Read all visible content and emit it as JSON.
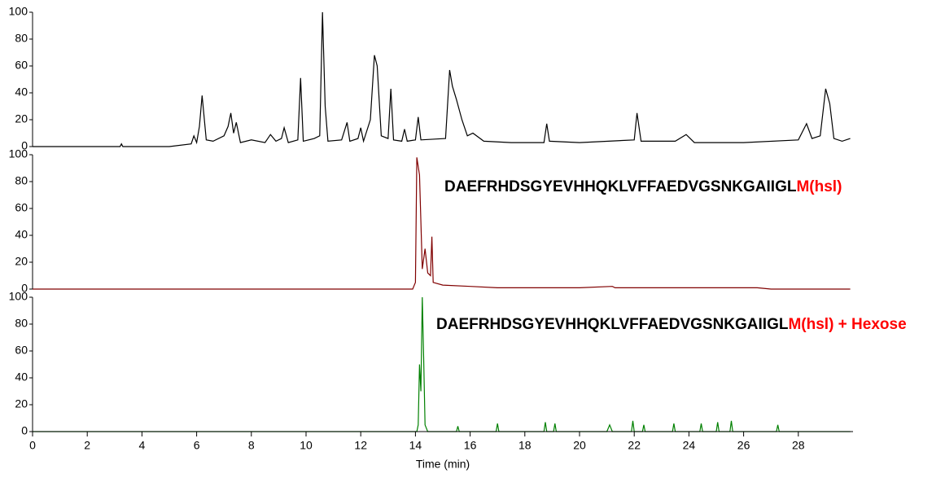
{
  "chart_data": [
    {
      "type": "line",
      "color": "#000000",
      "ylim": [
        0,
        100
      ],
      "yticks": [
        0,
        20,
        40,
        60,
        80,
        100
      ],
      "x": [
        0,
        3.2,
        3.25,
        3.3,
        5,
        5.8,
        5.9,
        6.0,
        6.1,
        6.2,
        6.35,
        6.6,
        7.0,
        7.15,
        7.25,
        7.35,
        7.45,
        7.6,
        8.0,
        8.5,
        8.7,
        8.9,
        9.1,
        9.2,
        9.35,
        9.7,
        9.8,
        9.9,
        10.3,
        10.5,
        10.6,
        10.7,
        10.8,
        11.3,
        11.5,
        11.6,
        11.9,
        12.0,
        12.1,
        12.35,
        12.5,
        12.6,
        12.75,
        13.0,
        13.1,
        13.2,
        13.5,
        13.6,
        13.7,
        14.0,
        14.1,
        14.2,
        15.1,
        15.25,
        15.35,
        15.5,
        15.7,
        15.9,
        16.1,
        16.5,
        17.5,
        18.7,
        18.8,
        18.9,
        20,
        22.0,
        22.1,
        22.25,
        23.5,
        23.9,
        24.2,
        26,
        28.0,
        28.3,
        28.5,
        28.8,
        29.0,
        29.15,
        29.3,
        29.6,
        29.9
      ],
      "values": [
        0,
        0,
        2,
        0,
        0,
        2,
        8,
        3,
        15,
        38,
        5,
        4,
        8,
        15,
        25,
        10,
        18,
        3,
        5,
        3,
        9,
        4,
        6,
        14,
        3,
        5,
        51,
        4,
        6,
        8,
        100,
        30,
        4,
        5,
        18,
        4,
        6,
        14,
        4,
        20,
        68,
        60,
        8,
        6,
        43,
        5,
        4,
        13,
        4,
        5,
        22,
        5,
        6,
        57,
        45,
        35,
        20,
        8,
        10,
        4,
        3,
        3,
        17,
        4,
        3,
        5,
        25,
        4,
        4,
        9,
        3,
        3,
        5,
        17,
        6,
        8,
        43,
        32,
        6,
        4,
        6
      ]
    },
    {
      "type": "line",
      "color": "#800000",
      "ylim": [
        0,
        100
      ],
      "yticks": [
        0,
        20,
        40,
        60,
        80,
        100
      ],
      "annotation_parts": [
        {
          "text": "DAEFRHDSGYEVHHQKLVFFAEDVGSNKGAIIGL",
          "color": "#000000"
        },
        {
          "text": "M(hsl)",
          "color": "#ff0000"
        }
      ],
      "x": [
        0,
        13.9,
        14.0,
        14.05,
        14.15,
        14.25,
        14.35,
        14.45,
        14.55,
        14.6,
        14.65,
        15,
        16,
        17,
        20,
        21.2,
        21.3,
        25,
        26.5,
        27,
        29.9
      ],
      "values": [
        0,
        0,
        5,
        98,
        85,
        15,
        30,
        12,
        10,
        39,
        5,
        3,
        2,
        1,
        1,
        2,
        1,
        1,
        1,
        0,
        0
      ]
    },
    {
      "type": "line",
      "color": "#008000",
      "ylim": [
        0,
        100
      ],
      "yticks": [
        0,
        20,
        40,
        60,
        80,
        100
      ],
      "xlim": [
        0,
        30
      ],
      "xticks": [
        0,
        2,
        4,
        6,
        8,
        10,
        12,
        14,
        16,
        18,
        20,
        22,
        24,
        26,
        28
      ],
      "x_label": "Time (min)",
      "annotation_parts": [
        {
          "text": "DAEFRHDSGYEVHHQKLVFFAEDVGSNKGAIIGL",
          "color": "#000000"
        },
        {
          "text": "M(hsl) + Hexose",
          "color": "#ff0000"
        }
      ],
      "x": [
        0,
        14.05,
        14.1,
        14.15,
        14.2,
        14.25,
        14.3,
        14.35,
        14.45,
        15.5,
        15.55,
        15.6,
        16.95,
        17,
        17.05,
        18.7,
        18.75,
        18.8,
        19.05,
        19.1,
        19.15,
        21.0,
        21.1,
        21.2,
        21.9,
        21.95,
        22.0,
        22.3,
        22.35,
        22.4,
        23.4,
        23.45,
        23.5,
        24.4,
        24.45,
        24.5,
        25.0,
        25.05,
        25.1,
        25.5,
        25.55,
        25.6,
        27.2,
        27.25,
        27.3,
        29.9
      ],
      "values": [
        0,
        0,
        5,
        50,
        30,
        100,
        55,
        5,
        0,
        0,
        4,
        0,
        0,
        6,
        0,
        0,
        7,
        0,
        0,
        6,
        0,
        0,
        5,
        0,
        0,
        8,
        0,
        0,
        5,
        0,
        0,
        6,
        0,
        0,
        6,
        0,
        0,
        7,
        0,
        0,
        8,
        0,
        0,
        5,
        0,
        0
      ]
    }
  ]
}
